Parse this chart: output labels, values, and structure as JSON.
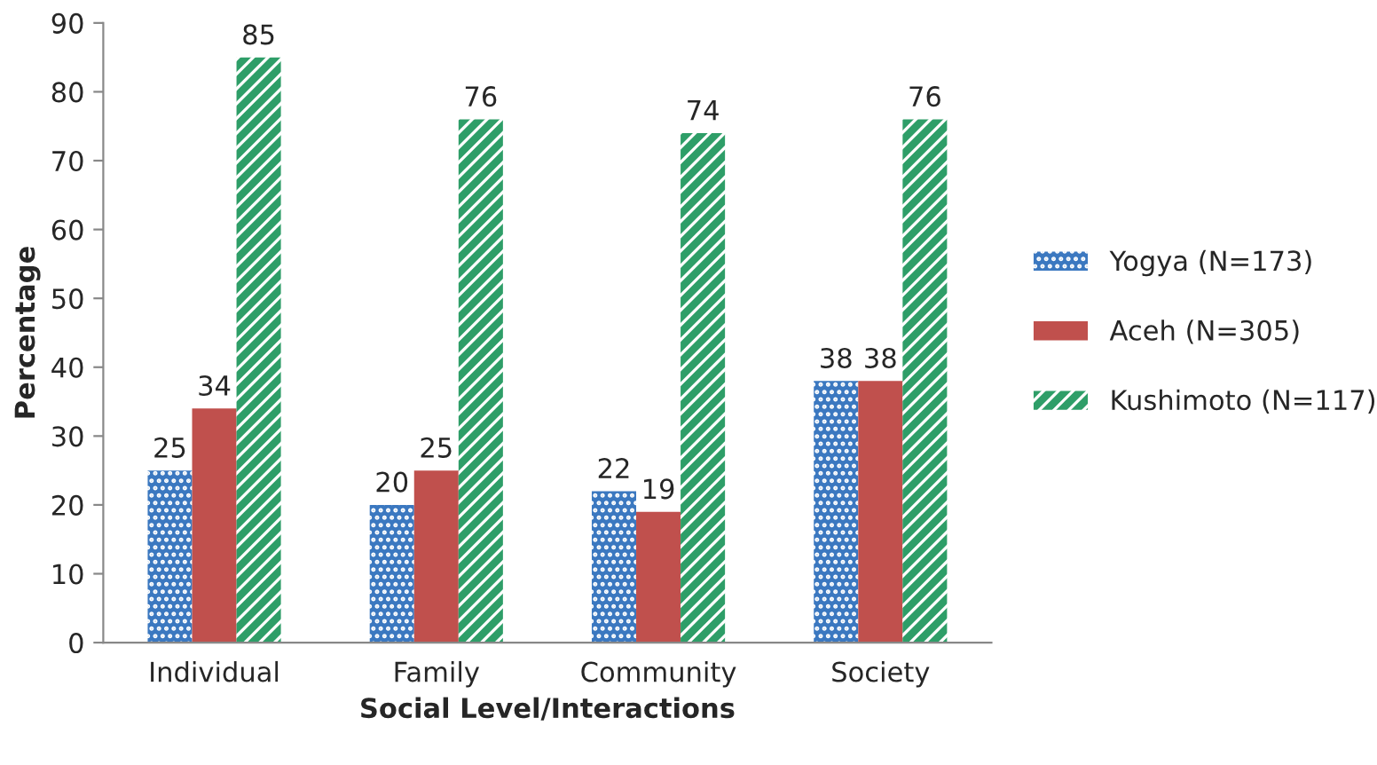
{
  "chart_data": {
    "type": "bar",
    "xlabel": "Social Level/Interactions",
    "ylabel": "Percentage",
    "categories": [
      "Individual",
      "Family",
      "Community",
      "Society"
    ],
    "series": [
      {
        "name": "Yogya (N=173)",
        "color": "#3b78c0",
        "values": [
          25,
          20,
          22,
          38
        ]
      },
      {
        "name": "Aceh (N=305)",
        "color": "#c0504d",
        "values": [
          34,
          25,
          19,
          38
        ]
      },
      {
        "name": "Kushimoto (N=117)",
        "color": "#2e9e68",
        "values": [
          85,
          76,
          74,
          76
        ]
      }
    ],
    "ylim": [
      0,
      90
    ],
    "yticks": [
      0,
      10,
      20,
      30,
      40,
      50,
      60,
      70,
      80,
      90
    ],
    "data_labels": true,
    "legend": "right",
    "grid": false
  }
}
